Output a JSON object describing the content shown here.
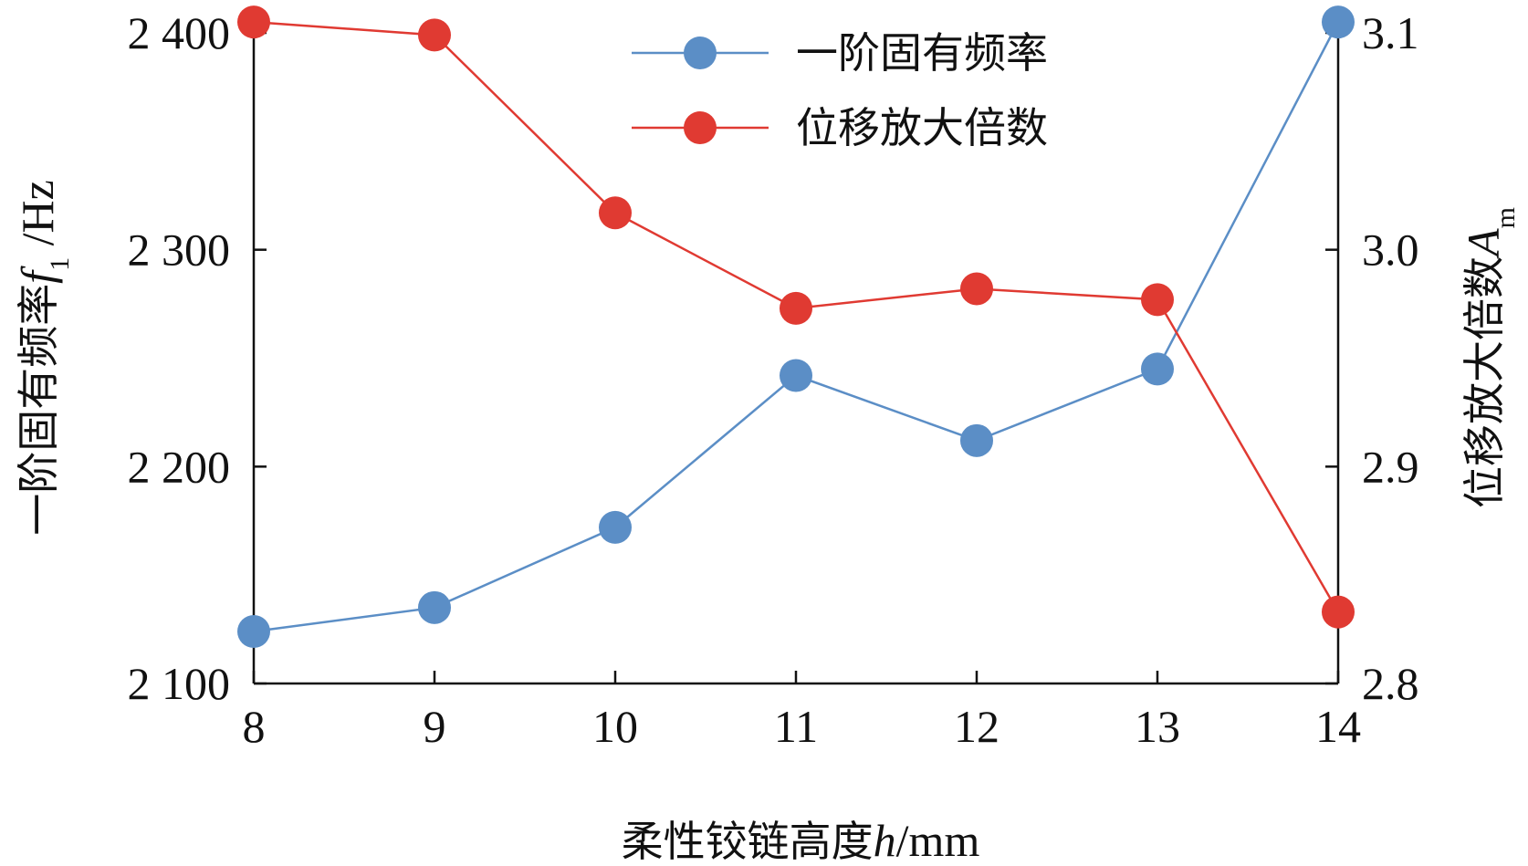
{
  "chart_data": {
    "type": "line",
    "x": [
      8,
      9,
      10,
      11,
      12,
      13,
      14
    ],
    "xlim": [
      8,
      14
    ],
    "xticks": [
      "8",
      "9",
      "10",
      "11",
      "12",
      "13",
      "14"
    ],
    "xlabel": {
      "prefix": "柔性铰链高度",
      "var": "h",
      "suffix": "/mm"
    },
    "ylabel_left": {
      "prefix": "一阶固有频率",
      "var": "f",
      "sub": "1",
      "suffix": " /Hz"
    },
    "ylabel_right": {
      "prefix": "位移放大倍数",
      "var": "A",
      "sub": "m"
    },
    "ylim_left": [
      2100,
      2400
    ],
    "yticks_left": [
      {
        "value": 2100,
        "label": "2 100"
      },
      {
        "value": 2200,
        "label": "2 200"
      },
      {
        "value": 2300,
        "label": "2 300"
      },
      {
        "value": 2400,
        "label": "2 400"
      }
    ],
    "ylim_right": [
      2.8,
      3.1
    ],
    "yticks_right": [
      {
        "value": 2.8,
        "label": "2.8"
      },
      {
        "value": 2.9,
        "label": "2.9"
      },
      {
        "value": 3.0,
        "label": "3.0"
      },
      {
        "value": 3.1,
        "label": "3.1"
      }
    ],
    "series": [
      {
        "name": "一阶固有频率",
        "axis": "left",
        "color": "#5b8ec6",
        "values": [
          2124,
          2135,
          2172,
          2242,
          2212,
          2245,
          2405
        ]
      },
      {
        "name": "位移放大倍数",
        "axis": "right",
        "color": "#e03a32",
        "values": [
          3.105,
          3.099,
          3.017,
          2.973,
          2.982,
          2.977,
          2.833
        ]
      }
    ],
    "legend_position": "top-right",
    "grid": false
  }
}
